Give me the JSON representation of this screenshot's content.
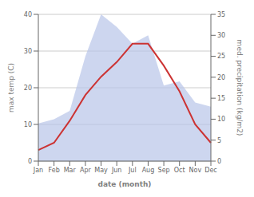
{
  "chart_data": {
    "type": "line",
    "xlabel": "date (month)",
    "ylabel": "max temp (C)",
    "y2label": "med. precipitation (kg/m2)",
    "categories": [
      "Jan",
      "Feb",
      "Mar",
      "Apr",
      "May",
      "Jun",
      "Jul",
      "Aug",
      "Sep",
      "Oct",
      "Nov",
      "Dec"
    ],
    "series": [
      {
        "type": "area",
        "axis": "y2",
        "color": "#b8c4e8",
        "values": [
          9,
          10,
          12,
          25,
          35,
          32,
          28,
          30,
          18,
          19,
          14,
          13
        ]
      },
      {
        "type": "line",
        "color": "#cc3333",
        "values": [
          3,
          5,
          11,
          18,
          23,
          27,
          32,
          32,
          26,
          19,
          10,
          5
        ]
      }
    ],
    "ylim": [
      0,
      40
    ],
    "yticks": [
      0,
      10,
      20,
      30,
      40
    ],
    "y2lim": [
      0,
      35
    ],
    "y2ticks": [
      0,
      5,
      10,
      15,
      20,
      25,
      30,
      35
    ],
    "grid": true
  }
}
